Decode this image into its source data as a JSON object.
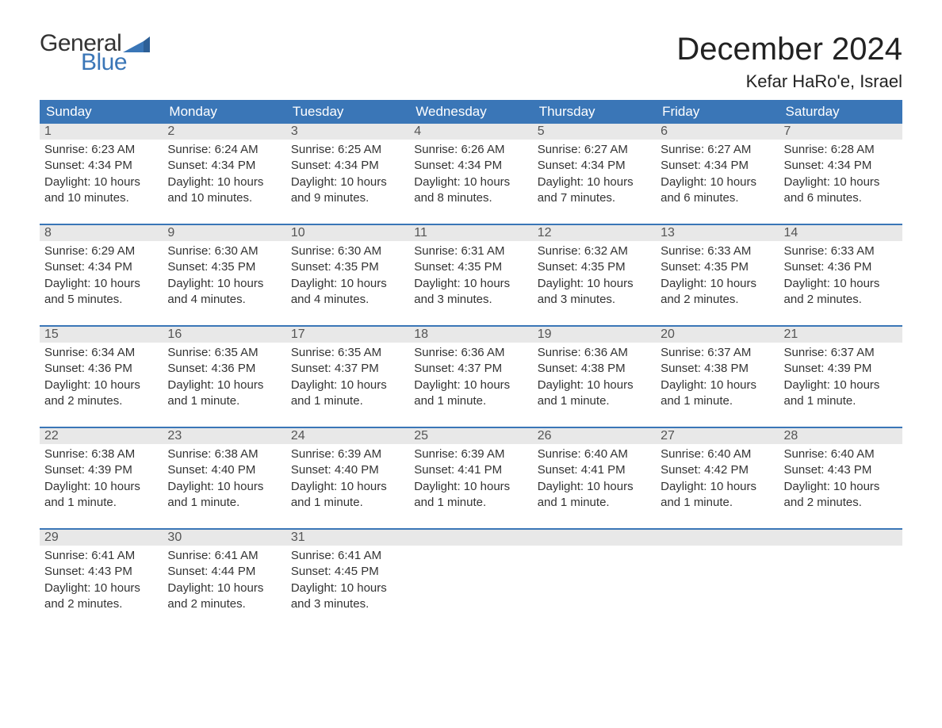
{
  "logo": {
    "word1": "General",
    "word2": "Blue"
  },
  "title": "December 2024",
  "location": "Kefar HaRo'e, Israel",
  "colors": {
    "header_bg": "#3a76b7",
    "header_text": "#ffffff",
    "daynum_bg": "#e8e8e8",
    "daynum_text": "#555555",
    "body_text": "#333333",
    "page_bg": "#ffffff",
    "logo_accent": "#3a76b7"
  },
  "typography": {
    "title_fontsize": 40,
    "location_fontsize": 22,
    "header_fontsize": 17,
    "daynum_fontsize": 16,
    "body_fontsize": 15,
    "font_family": "Arial"
  },
  "columns": [
    "Sunday",
    "Monday",
    "Tuesday",
    "Wednesday",
    "Thursday",
    "Friday",
    "Saturday"
  ],
  "weeks": [
    [
      {
        "n": "1",
        "sunrise": "Sunrise: 6:23 AM",
        "sunset": "Sunset: 4:34 PM",
        "day1": "Daylight: 10 hours",
        "day2": "and 10 minutes."
      },
      {
        "n": "2",
        "sunrise": "Sunrise: 6:24 AM",
        "sunset": "Sunset: 4:34 PM",
        "day1": "Daylight: 10 hours",
        "day2": "and 10 minutes."
      },
      {
        "n": "3",
        "sunrise": "Sunrise: 6:25 AM",
        "sunset": "Sunset: 4:34 PM",
        "day1": "Daylight: 10 hours",
        "day2": "and 9 minutes."
      },
      {
        "n": "4",
        "sunrise": "Sunrise: 6:26 AM",
        "sunset": "Sunset: 4:34 PM",
        "day1": "Daylight: 10 hours",
        "day2": "and 8 minutes."
      },
      {
        "n": "5",
        "sunrise": "Sunrise: 6:27 AM",
        "sunset": "Sunset: 4:34 PM",
        "day1": "Daylight: 10 hours",
        "day2": "and 7 minutes."
      },
      {
        "n": "6",
        "sunrise": "Sunrise: 6:27 AM",
        "sunset": "Sunset: 4:34 PM",
        "day1": "Daylight: 10 hours",
        "day2": "and 6 minutes."
      },
      {
        "n": "7",
        "sunrise": "Sunrise: 6:28 AM",
        "sunset": "Sunset: 4:34 PM",
        "day1": "Daylight: 10 hours",
        "day2": "and 6 minutes."
      }
    ],
    [
      {
        "n": "8",
        "sunrise": "Sunrise: 6:29 AM",
        "sunset": "Sunset: 4:34 PM",
        "day1": "Daylight: 10 hours",
        "day2": "and 5 minutes."
      },
      {
        "n": "9",
        "sunrise": "Sunrise: 6:30 AM",
        "sunset": "Sunset: 4:35 PM",
        "day1": "Daylight: 10 hours",
        "day2": "and 4 minutes."
      },
      {
        "n": "10",
        "sunrise": "Sunrise: 6:30 AM",
        "sunset": "Sunset: 4:35 PM",
        "day1": "Daylight: 10 hours",
        "day2": "and 4 minutes."
      },
      {
        "n": "11",
        "sunrise": "Sunrise: 6:31 AM",
        "sunset": "Sunset: 4:35 PM",
        "day1": "Daylight: 10 hours",
        "day2": "and 3 minutes."
      },
      {
        "n": "12",
        "sunrise": "Sunrise: 6:32 AM",
        "sunset": "Sunset: 4:35 PM",
        "day1": "Daylight: 10 hours",
        "day2": "and 3 minutes."
      },
      {
        "n": "13",
        "sunrise": "Sunrise: 6:33 AM",
        "sunset": "Sunset: 4:35 PM",
        "day1": "Daylight: 10 hours",
        "day2": "and 2 minutes."
      },
      {
        "n": "14",
        "sunrise": "Sunrise: 6:33 AM",
        "sunset": "Sunset: 4:36 PM",
        "day1": "Daylight: 10 hours",
        "day2": "and 2 minutes."
      }
    ],
    [
      {
        "n": "15",
        "sunrise": "Sunrise: 6:34 AM",
        "sunset": "Sunset: 4:36 PM",
        "day1": "Daylight: 10 hours",
        "day2": "and 2 minutes."
      },
      {
        "n": "16",
        "sunrise": "Sunrise: 6:35 AM",
        "sunset": "Sunset: 4:36 PM",
        "day1": "Daylight: 10 hours",
        "day2": "and 1 minute."
      },
      {
        "n": "17",
        "sunrise": "Sunrise: 6:35 AM",
        "sunset": "Sunset: 4:37 PM",
        "day1": "Daylight: 10 hours",
        "day2": "and 1 minute."
      },
      {
        "n": "18",
        "sunrise": "Sunrise: 6:36 AM",
        "sunset": "Sunset: 4:37 PM",
        "day1": "Daylight: 10 hours",
        "day2": "and 1 minute."
      },
      {
        "n": "19",
        "sunrise": "Sunrise: 6:36 AM",
        "sunset": "Sunset: 4:38 PM",
        "day1": "Daylight: 10 hours",
        "day2": "and 1 minute."
      },
      {
        "n": "20",
        "sunrise": "Sunrise: 6:37 AM",
        "sunset": "Sunset: 4:38 PM",
        "day1": "Daylight: 10 hours",
        "day2": "and 1 minute."
      },
      {
        "n": "21",
        "sunrise": "Sunrise: 6:37 AM",
        "sunset": "Sunset: 4:39 PM",
        "day1": "Daylight: 10 hours",
        "day2": "and 1 minute."
      }
    ],
    [
      {
        "n": "22",
        "sunrise": "Sunrise: 6:38 AM",
        "sunset": "Sunset: 4:39 PM",
        "day1": "Daylight: 10 hours",
        "day2": "and 1 minute."
      },
      {
        "n": "23",
        "sunrise": "Sunrise: 6:38 AM",
        "sunset": "Sunset: 4:40 PM",
        "day1": "Daylight: 10 hours",
        "day2": "and 1 minute."
      },
      {
        "n": "24",
        "sunrise": "Sunrise: 6:39 AM",
        "sunset": "Sunset: 4:40 PM",
        "day1": "Daylight: 10 hours",
        "day2": "and 1 minute."
      },
      {
        "n": "25",
        "sunrise": "Sunrise: 6:39 AM",
        "sunset": "Sunset: 4:41 PM",
        "day1": "Daylight: 10 hours",
        "day2": "and 1 minute."
      },
      {
        "n": "26",
        "sunrise": "Sunrise: 6:40 AM",
        "sunset": "Sunset: 4:41 PM",
        "day1": "Daylight: 10 hours",
        "day2": "and 1 minute."
      },
      {
        "n": "27",
        "sunrise": "Sunrise: 6:40 AM",
        "sunset": "Sunset: 4:42 PM",
        "day1": "Daylight: 10 hours",
        "day2": "and 1 minute."
      },
      {
        "n": "28",
        "sunrise": "Sunrise: 6:40 AM",
        "sunset": "Sunset: 4:43 PM",
        "day1": "Daylight: 10 hours",
        "day2": "and 2 minutes."
      }
    ],
    [
      {
        "n": "29",
        "sunrise": "Sunrise: 6:41 AM",
        "sunset": "Sunset: 4:43 PM",
        "day1": "Daylight: 10 hours",
        "day2": "and 2 minutes."
      },
      {
        "n": "30",
        "sunrise": "Sunrise: 6:41 AM",
        "sunset": "Sunset: 4:44 PM",
        "day1": "Daylight: 10 hours",
        "day2": "and 2 minutes."
      },
      {
        "n": "31",
        "sunrise": "Sunrise: 6:41 AM",
        "sunset": "Sunset: 4:45 PM",
        "day1": "Daylight: 10 hours",
        "day2": "and 3 minutes."
      },
      {
        "n": "",
        "sunrise": "",
        "sunset": "",
        "day1": "",
        "day2": ""
      },
      {
        "n": "",
        "sunrise": "",
        "sunset": "",
        "day1": "",
        "day2": ""
      },
      {
        "n": "",
        "sunrise": "",
        "sunset": "",
        "day1": "",
        "day2": ""
      },
      {
        "n": "",
        "sunrise": "",
        "sunset": "",
        "day1": "",
        "day2": ""
      }
    ]
  ]
}
